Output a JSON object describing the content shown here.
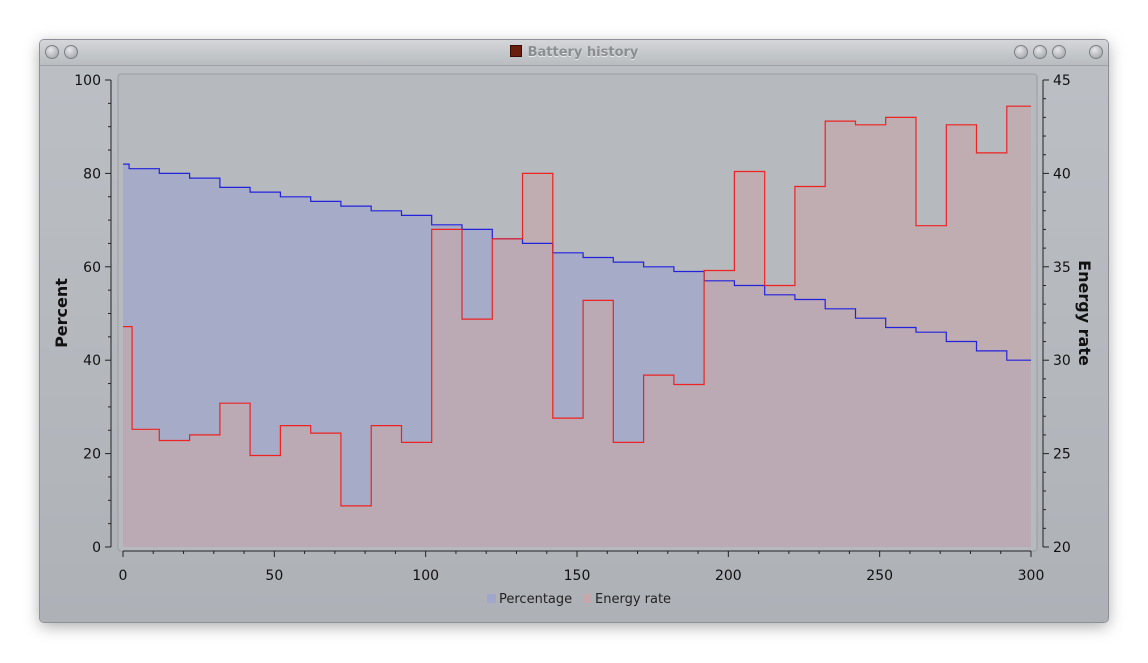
{
  "window": {
    "title": "Battery history",
    "app_icon": "battery-app-icon",
    "left_buttons": [
      "menu-icon",
      "shade-icon"
    ],
    "right_buttons": [
      "minimize-icon",
      "maximize-icon",
      "restore-icon",
      "close-icon"
    ]
  },
  "colors": {
    "percentage": "#2222dd",
    "energy_rate": "#ee2222",
    "percentage_fill": "#a0a6cc",
    "energy_fill": "#c4a8ac"
  },
  "chart_data": {
    "type": "area",
    "step": true,
    "title": "",
    "xlabel": "",
    "ylabel": "Percent",
    "y2label": "Energy rate",
    "xlim": [
      0,
      300
    ],
    "ylim": [
      0,
      100
    ],
    "y2lim": [
      20,
      45
    ],
    "x_ticks": [
      0,
      50,
      100,
      150,
      200,
      250,
      300
    ],
    "y_ticks": [
      0,
      20,
      40,
      60,
      80,
      100
    ],
    "y2_ticks": [
      20,
      25,
      30,
      35,
      40,
      45
    ],
    "legend_position": "bottom-center",
    "grid": false,
    "series": [
      {
        "name": "Percentage",
        "axis": "left",
        "points": [
          [
            0,
            82
          ],
          [
            2,
            81
          ],
          [
            12,
            80
          ],
          [
            22,
            79
          ],
          [
            32,
            77
          ],
          [
            42,
            76
          ],
          [
            52,
            75
          ],
          [
            62,
            74
          ],
          [
            72,
            73
          ],
          [
            82,
            72
          ],
          [
            92,
            71
          ],
          [
            102,
            69
          ],
          [
            112,
            68
          ],
          [
            122,
            66
          ],
          [
            132,
            65
          ],
          [
            142,
            63
          ],
          [
            152,
            62
          ],
          [
            162,
            61
          ],
          [
            172,
            60
          ],
          [
            182,
            59
          ],
          [
            192,
            57
          ],
          [
            202,
            56
          ],
          [
            212,
            54
          ],
          [
            222,
            53
          ],
          [
            232,
            51
          ],
          [
            242,
            49
          ],
          [
            252,
            47
          ],
          [
            262,
            46
          ],
          [
            272,
            44
          ],
          [
            282,
            42
          ],
          [
            292,
            40
          ],
          [
            300,
            40
          ]
        ]
      },
      {
        "name": "Energy rate",
        "axis": "right",
        "points": [
          [
            0,
            31.8
          ],
          [
            3,
            26.3
          ],
          [
            12,
            25.7
          ],
          [
            22,
            26.0
          ],
          [
            32,
            27.7
          ],
          [
            42,
            24.9
          ],
          [
            52,
            26.5
          ],
          [
            62,
            26.1
          ],
          [
            72,
            22.2
          ],
          [
            82,
            26.5
          ],
          [
            92,
            25.6
          ],
          [
            102,
            37.0
          ],
          [
            112,
            32.2
          ],
          [
            122,
            36.5
          ],
          [
            132,
            40.0
          ],
          [
            142,
            26.9
          ],
          [
            152,
            33.2
          ],
          [
            162,
            25.6
          ],
          [
            172,
            29.2
          ],
          [
            182,
            28.7
          ],
          [
            192,
            34.8
          ],
          [
            202,
            40.1
          ],
          [
            212,
            34.0
          ],
          [
            222,
            39.3
          ],
          [
            232,
            42.8
          ],
          [
            242,
            42.6
          ],
          [
            252,
            43.0
          ],
          [
            262,
            37.2
          ],
          [
            272,
            42.6
          ],
          [
            282,
            41.1
          ],
          [
            292,
            43.6
          ],
          [
            300,
            43.6
          ]
        ]
      }
    ]
  }
}
